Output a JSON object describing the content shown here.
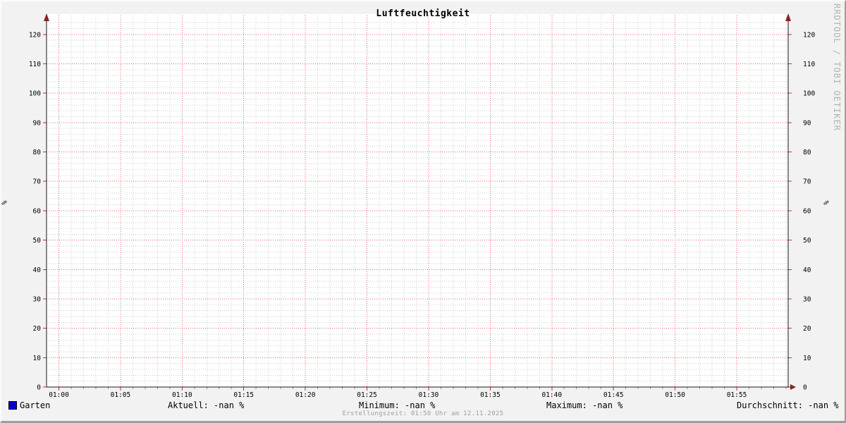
{
  "title": "Luftfeuchtigkeit",
  "watermark": "RRDTOOL / TOBI OETIKER",
  "footer": "Erstellungszeit: 01:50 Uhr am 12.11.2025",
  "axis": {
    "left_unit": "%",
    "right_unit": "%"
  },
  "legend": {
    "series": {
      "label": "Garten",
      "color": "#0000cc"
    },
    "stats": [
      {
        "label": "Aktuell:",
        "value": "-nan %"
      },
      {
        "label": "Minimum:",
        "value": "-nan %"
      },
      {
        "label": "Maximum:",
        "value": "-nan %"
      },
      {
        "label": "Durchschnitt:",
        "value": "-nan %"
      }
    ]
  },
  "chart_data": {
    "type": "line",
    "title": "Luftfeuchtigkeit",
    "xlabel": "",
    "ylabel": "%",
    "ylim": [
      0,
      125
    ],
    "y_major_ticks": [
      0,
      10,
      20,
      30,
      40,
      50,
      60,
      70,
      80,
      90,
      100,
      110,
      120
    ],
    "y_minor_step": 2,
    "x_tick_labels": [
      "01:00",
      "01:05",
      "01:10",
      "01:15",
      "01:20",
      "01:25",
      "01:30",
      "01:35",
      "01:40",
      "01:45",
      "01:50",
      "01:55"
    ],
    "x_minor_per_major": 5,
    "grid": "on",
    "legend_position": "bottom",
    "series": [
      {
        "name": "Garten",
        "color": "#0000cc",
        "values": [],
        "note": "no data plotted; all values -nan"
      }
    ],
    "colors": {
      "background": "#f2f2f2",
      "canvas": "#ffffff",
      "major_grid": "#e06868",
      "minor_grid": "#cecece",
      "axis": "#1a1a1a",
      "arrow": "#8b2121",
      "tick_major": "#c23434",
      "tick_minor": "#8f8f8f",
      "text": "#000000",
      "footer_text": "#9f9f9f",
      "watermark_text": "#b3b3b3",
      "shade_top_left": "#fbfbfb",
      "shade_bottom_right": "#9e9e9e"
    }
  }
}
